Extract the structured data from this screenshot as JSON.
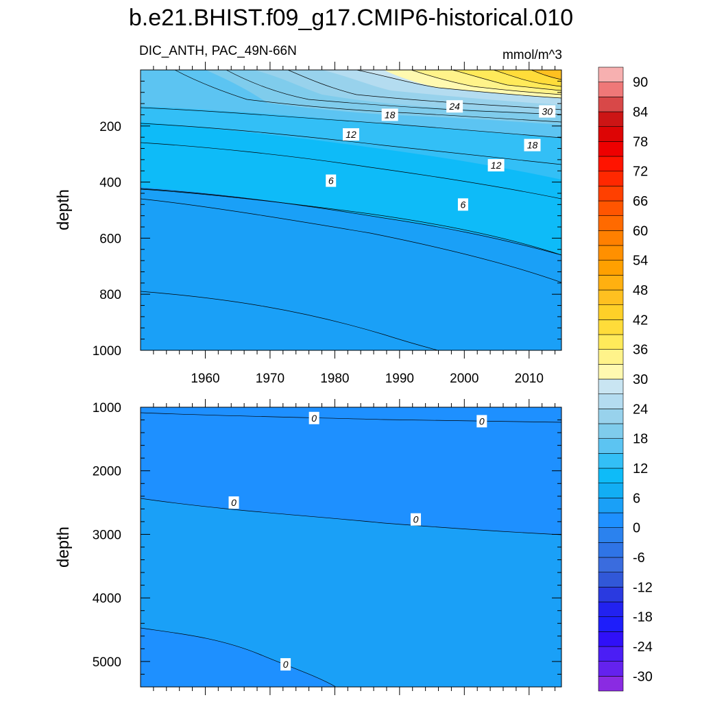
{
  "chart_data": {
    "type": "contour",
    "title": "b.e21.BHIST.f09_g17.CMIP6-historical.010",
    "variable_label": "DIC_ANTH, PAC_49N-66N",
    "units": "mmol/m^3",
    "x_range": [
      1950,
      2015
    ],
    "x_ticks": [
      1960,
      1970,
      1980,
      1990,
      2000,
      2010
    ],
    "x_tick_labels": [
      "1960",
      "1970",
      "1980",
      "1990",
      "2000",
      "2010"
    ],
    "panels": [
      {
        "name": "upper",
        "ylabel": "depth",
        "ylim": [
          0,
          1000
        ],
        "y_ticks": [
          200,
          400,
          600,
          800,
          1000
        ],
        "y_tick_labels": [
          "200",
          "400",
          "600",
          "800",
          "1000"
        ],
        "contour_interval": 3,
        "contour_labels": [
          {
            "text": "6",
            "x": 1979.4,
            "y": 395
          },
          {
            "text": "6",
            "x": 1999.8,
            "y": 480
          },
          {
            "text": "12",
            "x": 1982.5,
            "y": 230
          },
          {
            "text": "12",
            "x": 2004.9,
            "y": 340
          },
          {
            "text": "18",
            "x": 1988.5,
            "y": 160
          },
          {
            "text": "18",
            "x": 2010.5,
            "y": 268
          },
          {
            "text": "24",
            "x": 1998.5,
            "y": 130
          },
          {
            "text": "30",
            "x": 2012.8,
            "y": 148
          }
        ]
      },
      {
        "name": "lower",
        "ylabel": "depth",
        "ylim": [
          1000,
          5400
        ],
        "y_ticks": [
          1000,
          2000,
          3000,
          4000,
          5000
        ],
        "y_tick_labels": [
          "1000",
          "2000",
          "3000",
          "4000",
          "5000"
        ],
        "contour_interval": 3,
        "contour_labels": [
          {
            "text": "0",
            "x": 1976.8,
            "y": 1170
          },
          {
            "text": "0",
            "x": 2002.7,
            "y": 1220
          },
          {
            "text": "0",
            "x": 1964.4,
            "y": 2500
          },
          {
            "text": "0",
            "x": 1992.5,
            "y": 2765
          },
          {
            "text": "0",
            "x": 1972.4,
            "y": 5045
          }
        ]
      }
    ],
    "colorbar": {
      "levels": [
        -30,
        -27,
        -24,
        -21,
        -18,
        -15,
        -12,
        -9,
        -6,
        -3,
        0,
        3,
        6,
        9,
        12,
        15,
        18,
        21,
        24,
        27,
        30,
        33,
        36,
        39,
        42,
        45,
        48,
        51,
        54,
        57,
        60,
        63,
        66,
        69,
        72,
        75,
        78,
        81,
        84,
        87,
        90
      ],
      "labels": [
        "-30",
        "-24",
        "-18",
        "-12",
        "-6",
        "0",
        "6",
        "12",
        "18",
        "24",
        "30",
        "36",
        "42",
        "48",
        "54",
        "60",
        "66",
        "72",
        "78",
        "84",
        "90"
      ],
      "colors": [
        "#8A2BE2",
        "#6422EE",
        "#4B1EF5",
        "#3010F8",
        "#1E1EFA",
        "#2222F0",
        "#2A3AE0",
        "#3158D8",
        "#3A6CDE",
        "#2F74E6",
        "#2B82EE",
        "#1E90FF",
        "#1AA0F7",
        "#12AEF4",
        "#0EBBF8",
        "#33BFF6",
        "#5CC4F2",
        "#7FCCEC",
        "#98D2EC",
        "#B4DCF0",
        "#C9E5F2",
        "#FFF9B0",
        "#FFF38A",
        "#FFEA5A",
        "#FFDC3A",
        "#FFD028",
        "#FFC020",
        "#FFB010",
        "#FFA000",
        "#FF9000",
        "#FF8000",
        "#FF6A00",
        "#FF5500",
        "#FF4000",
        "#FF2800",
        "#FF1400",
        "#EE0000",
        "#DD0505",
        "#CC1515",
        "#D84848",
        "#EF7878",
        "#F7B0B0"
      ]
    }
  }
}
